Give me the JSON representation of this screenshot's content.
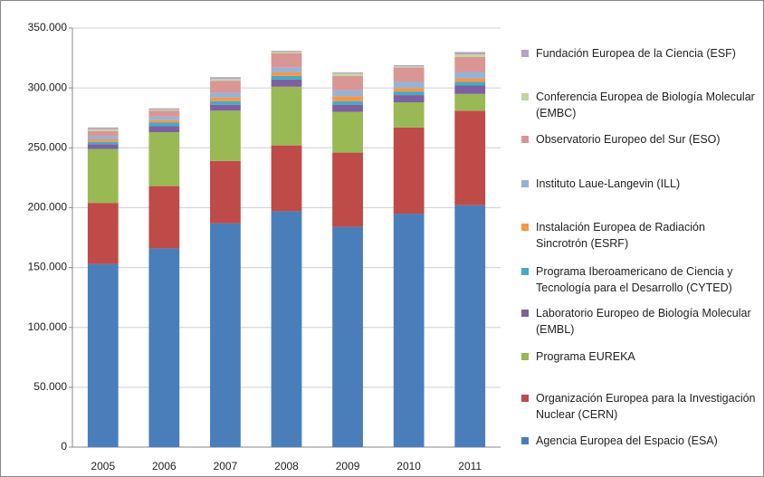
{
  "chart_data": {
    "type": "stacked_bar",
    "categories": [
      "2005",
      "2006",
      "2007",
      "2008",
      "2009",
      "2010",
      "2011"
    ],
    "series": [
      {
        "name": "Agencia Europea del Espacio (ESA)",
        "color": "#4a7ebb",
        "values": [
          153000,
          166000,
          187000,
          197000,
          184000,
          195000,
          202000
        ]
      },
      {
        "name": "Organización Europea para la Investigación Nuclear (CERN)",
        "color": "#be4b48",
        "values": [
          51000,
          52000,
          52000,
          55000,
          62000,
          72000,
          79000
        ]
      },
      {
        "name": "Programa EUREKA",
        "color": "#98b954",
        "values": [
          45000,
          45000,
          42000,
          49000,
          34000,
          21000,
          14000
        ]
      },
      {
        "name": "Laboratorio Europeo de Biología Molecular (EMBL)",
        "color": "#7d60a0",
        "values": [
          4000,
          5000,
          5000,
          6000,
          6000,
          6000,
          7000
        ]
      },
      {
        "name": "Programa Iberoamericano de Ciencia y Tecnología para el Desarrollo (CYTED)",
        "color": "#46aac5",
        "values": [
          2000,
          3000,
          3000,
          3000,
          3000,
          3000,
          3000
        ]
      },
      {
        "name": "Instalación Europea de Radiación Sincrotrón (ESRF)",
        "color": "#f79646",
        "values": [
          2000,
          2000,
          3000,
          3000,
          4000,
          3000,
          3000
        ]
      },
      {
        "name": "Instituto Laue-Langevin (ILL)",
        "color": "#95b3d7",
        "values": [
          3000,
          3000,
          4000,
          4000,
          5000,
          5000,
          5000
        ]
      },
      {
        "name": "Observatorio Europeo del Sur (ESO)",
        "color": "#d99694",
        "values": [
          4000,
          5000,
          10000,
          12000,
          12000,
          12000,
          13000
        ]
      },
      {
        "name": "Conferencia Europea de Biología Molecular (EMBC)",
        "color": "#c3d69b",
        "values": [
          1500,
          1000,
          1500,
          1000,
          2000,
          1000,
          2000
        ]
      },
      {
        "name": "Fundación Europea de la Ciencia (ESF)",
        "color": "#b3a2c7",
        "values": [
          1500,
          1000,
          1500,
          1000,
          1000,
          1000,
          2000
        ]
      }
    ],
    "ylim": [
      0,
      350000
    ],
    "yticks": [
      0,
      {
        "value": 50000,
        "label": "50.000"
      },
      {
        "value": 100000,
        "label": "100.000"
      },
      {
        "value": 150000,
        "label": "150.000"
      },
      {
        "value": 200000,
        "label": "200.000"
      },
      {
        "value": 250000,
        "label": "250.000"
      },
      {
        "value": 300000,
        "label": "300.000"
      },
      {
        "value": 350000,
        "label": "350.000"
      }
    ],
    "grid": true,
    "legend": "right"
  }
}
